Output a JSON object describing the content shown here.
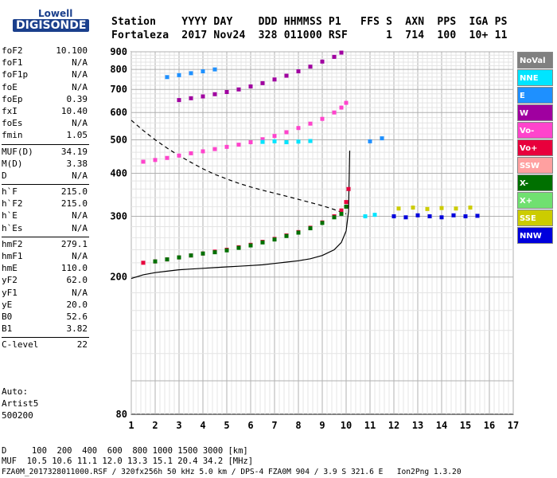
{
  "logo": {
    "line1": "Lowell",
    "line2": "DIGISONDE"
  },
  "header": {
    "line1": "Station    YYYY DAY    DDD HHMMSS P1   FFS S  AXN  PPS  IGA PS",
    "line2": "Fortaleza  2017 Nov24  328 011000 RSF      1  714  100  10+ 11"
  },
  "params_groups": [
    [
      {
        "k": "foF2",
        "v": "10.100"
      },
      {
        "k": "foF1",
        "v": "N/A"
      },
      {
        "k": "foF1p",
        "v": "N/A"
      },
      {
        "k": "foE",
        "v": "N/A"
      },
      {
        "k": "foEp",
        "v": "0.39"
      },
      {
        "k": "fxI",
        "v": "10.40"
      },
      {
        "k": "foEs",
        "v": "N/A"
      },
      {
        "k": "fmin",
        "v": "1.05"
      }
    ],
    [
      {
        "k": "MUF(D)",
        "v": "34.19"
      },
      {
        "k": "M(D)",
        "v": "3.38"
      },
      {
        "k": "D",
        "v": "N/A"
      }
    ],
    [
      {
        "k": "h`F",
        "v": "215.0"
      },
      {
        "k": "h`F2",
        "v": "215.0"
      },
      {
        "k": "h`E",
        "v": "N/A"
      },
      {
        "k": "h`Es",
        "v": "N/A"
      }
    ],
    [
      {
        "k": "hmF2",
        "v": "279.1"
      },
      {
        "k": "hmF1",
        "v": "N/A"
      },
      {
        "k": "hmE",
        "v": "110.0"
      },
      {
        "k": "yF2",
        "v": "62.0"
      },
      {
        "k": "yF1",
        "v": "N/A"
      },
      {
        "k": "yE",
        "v": "20.0"
      },
      {
        "k": "B0",
        "v": "52.6"
      },
      {
        "k": "B1",
        "v": "3.82"
      }
    ],
    [
      {
        "k": "C-level",
        "v": "22"
      }
    ]
  ],
  "auto": {
    "line1": "Auto:",
    "line2": "Artist5",
    "line3": "500200"
  },
  "footer": {
    "line1": "D     100  200  400  600  800 1000 1500 3000 [km]",
    "line2": "MUF  10.5 10.6 11.1 12.0 13.3 15.1 20.4 34.2 [MHz]",
    "line3": "FZA0M_2017328011000.RSF / 320fx256h 50 kHz 5.0 km / DPS-4 FZA0M 904 / 3.9 S 321.6 E   Ion2Png 1.3.20"
  },
  "legend": [
    {
      "label": "NoVal",
      "color": "#808080"
    },
    {
      "label": "NNE",
      "color": "#00e5ff"
    },
    {
      "label": "E",
      "color": "#1e90ff"
    },
    {
      "label": "W",
      "color": "#a000a0"
    },
    {
      "label": "Vo-",
      "color": "#ff44cc"
    },
    {
      "label": "Vo+",
      "color": "#e8003c"
    },
    {
      "label": "SSW",
      "color": "#ffa0a0"
    },
    {
      "label": "X-",
      "color": "#007000"
    },
    {
      "label": "X+",
      "color": "#70e070"
    },
    {
      "label": "SSE",
      "color": "#cccc00"
    },
    {
      "label": "NNW",
      "color": "#0000dd"
    }
  ],
  "chart_data": {
    "type": "scatter",
    "xlabel": "",
    "ylabel": "",
    "x_ticks": [
      1,
      2,
      3,
      4,
      5,
      6,
      7,
      8,
      9,
      10,
      11,
      12,
      13,
      14,
      15,
      16,
      17
    ],
    "y_ticks": [
      80,
      200,
      300,
      400,
      500,
      600,
      700,
      800,
      900
    ],
    "xlim": [
      1,
      17
    ],
    "ylim_log": [
      80,
      900
    ],
    "grid": true,
    "series": [
      {
        "name": "Vo+",
        "color": "#e8003c",
        "x": [
          1.5,
          2.0,
          2.5,
          3.0,
          3.5,
          4.0,
          4.5,
          5.0,
          5.5,
          6.0,
          6.5,
          7.0,
          7.5,
          8.0,
          8.5,
          9.0,
          9.5,
          9.8,
          10.0,
          10.1
        ],
        "y": [
          220,
          222,
          225,
          228,
          231,
          234,
          237,
          240,
          244,
          248,
          253,
          258,
          264,
          270,
          278,
          288,
          300,
          312,
          330,
          360
        ]
      },
      {
        "name": "Vo-",
        "color": "#ff44cc",
        "x": [
          1.5,
          2.0,
          2.5,
          3.0,
          3.5,
          4.0,
          4.5,
          5.0,
          5.5,
          6.0,
          6.5,
          7.0,
          7.5,
          8.0,
          8.5,
          9.0,
          9.5,
          9.8,
          10.0
        ],
        "y": [
          432,
          437,
          443,
          450,
          457,
          463,
          470,
          477,
          484,
          492,
          502,
          513,
          526,
          541,
          557,
          575,
          600,
          620,
          640
        ]
      },
      {
        "name": "X-",
        "color": "#007000",
        "x": [
          2.0,
          2.5,
          3.0,
          3.5,
          4.0,
          4.5,
          5.0,
          5.5,
          6.0,
          6.5,
          7.0,
          7.5,
          8.0,
          8.5,
          9.0,
          9.5,
          9.8,
          10.0
        ],
        "y": [
          222,
          225,
          228,
          231,
          234,
          236,
          239,
          243,
          247,
          252,
          257,
          263,
          269,
          277,
          287,
          298,
          305,
          320
        ]
      },
      {
        "name": "W",
        "color": "#a000a0",
        "x": [
          3.0,
          3.5,
          4.0,
          4.5,
          5.0,
          5.5,
          6.0,
          6.5,
          7.0,
          7.5,
          8.0,
          8.5,
          9.0,
          9.5,
          9.8
        ],
        "y": [
          652,
          660,
          668,
          678,
          688,
          700,
          714,
          730,
          748,
          767,
          790,
          815,
          843,
          870,
          895
        ]
      },
      {
        "name": "NNW",
        "color": "#0000dd",
        "x": [
          12.0,
          12.5,
          13.0,
          13.5,
          14.0,
          14.5,
          15.0,
          15.5
        ],
        "y": [
          300,
          298,
          302,
          300,
          298,
          302,
          300,
          301
        ]
      },
      {
        "name": "SSE",
        "color": "#cccc00",
        "x": [
          12.2,
          12.8,
          13.4,
          14.0,
          14.6,
          15.2
        ],
        "y": [
          316,
          318,
          315,
          317,
          316,
          318
        ]
      },
      {
        "name": "NNE",
        "color": "#00e5ff",
        "x": [
          6.5,
          7.0,
          7.5,
          8.0,
          8.5,
          10.8,
          11.2
        ],
        "y": [
          493,
          495,
          492,
          494,
          496,
          300,
          303
        ]
      },
      {
        "name": "E",
        "color": "#1e90ff",
        "x": [
          2.5,
          3.0,
          3.5,
          4.0,
          4.5,
          11.0,
          11.5
        ],
        "y": [
          760,
          770,
          780,
          790,
          800,
          495,
          505
        ]
      }
    ],
    "profile_dashed": {
      "x": [
        1.0,
        1.5,
        2.0,
        2.5,
        3.0,
        3.5,
        4.0,
        4.5,
        5.0,
        5.5,
        6.0,
        6.5,
        7.0,
        7.5,
        8.0,
        8.5,
        9.0,
        9.5,
        10.0
      ],
      "y": [
        570,
        532,
        500,
        473,
        450,
        430,
        412,
        397,
        385,
        374,
        365,
        357,
        350,
        343,
        336,
        329,
        322,
        314,
        305
      ]
    },
    "profile_solid": {
      "x": [
        1.0,
        1.5,
        2.0,
        2.5,
        3.0,
        3.5,
        4.0,
        4.5,
        5.0,
        5.5,
        6.0,
        6.5,
        7.0,
        7.5,
        8.0,
        8.5,
        9.0,
        9.5,
        9.8,
        10.0,
        10.1,
        10.15
      ],
      "y": [
        198,
        203,
        206,
        208,
        210,
        211,
        212,
        213,
        214,
        215,
        216,
        217,
        219,
        221,
        223,
        226,
        231,
        240,
        252,
        272,
        310,
        465
      ]
    }
  }
}
